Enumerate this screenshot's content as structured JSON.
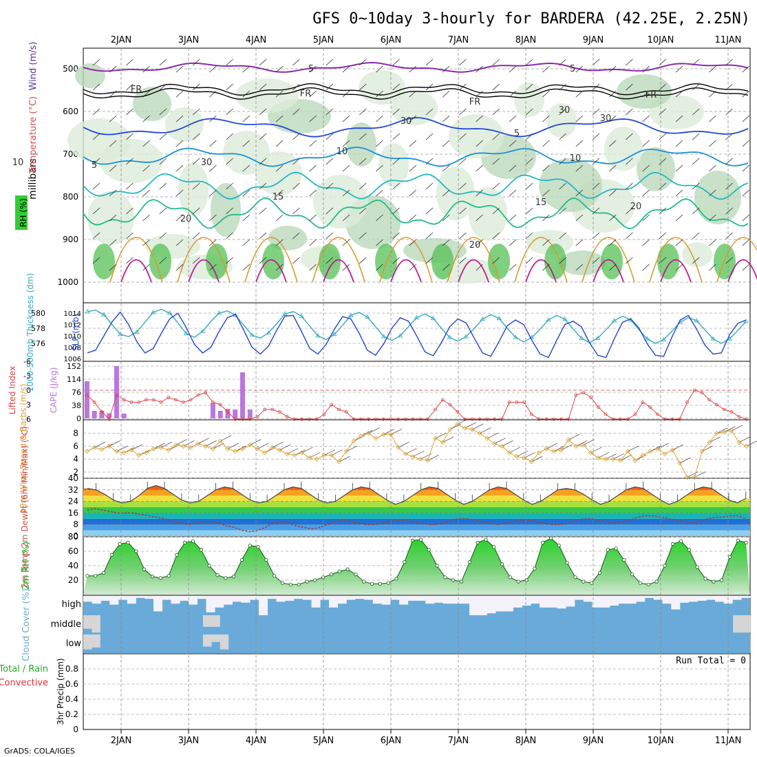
{
  "title": "GFS 0~10day 3-hourly for BARDERA (42.25E, 2.25N)",
  "credit": "GrADS: COLA/IGES",
  "dates": [
    "2JAN",
    "3JAN",
    "4JAN",
    "5JAN",
    "6JAN",
    "7JAN",
    "8JAN",
    "9JAN",
    "10JAN",
    "11JAN"
  ],
  "colors": {
    "rh": "#33bb33",
    "temp": "#d05050",
    "wind": "#6030a0",
    "cape": "#bb77dd",
    "li": "#dd4444",
    "thick": "#33aabb",
    "slp": "#2244cc",
    "wind10": "#e0a030",
    "rh2m": "#22aa22",
    "cloud": "#6aaad8",
    "precip_total": "#22aa22",
    "precip_conv": "#dd3333"
  },
  "chart_data": [
    {
      "type": "area",
      "panel": "upper-air",
      "ylabel": "millibars",
      "legend_labels": [
        "RH (%)",
        "Temperature (°C)",
        "Wind (m/s)"
      ],
      "y_ticks": [
        "500",
        "600",
        "700",
        "800",
        "900",
        "1000"
      ],
      "contour_labels": [
        "5",
        "5",
        "FR",
        "FR",
        "FR",
        "FR",
        "5",
        "5",
        "10",
        "10",
        "10",
        "15",
        "15",
        "20",
        "20",
        "20",
        "30",
        "30",
        "30",
        "30"
      ]
    },
    {
      "type": "line",
      "panel": "thickness-slp",
      "ylabel_left": "1000-500mb Thickness (dm)",
      "ylabel_right": "SLP (mb)",
      "left_ticks": [
        "580",
        "578",
        "576"
      ],
      "right_ticks": [
        "1014",
        "1012",
        "1010",
        "1008",
        "1006"
      ],
      "series": [
        {
          "name": "1000-500mb Thickness (dm)",
          "values": [
            580.2,
            580.4,
            579.8,
            578.5,
            577.2,
            576.9,
            577.5,
            578.8,
            580.1,
            580.5,
            580.0,
            578.7,
            577.3,
            576.8,
            577.6,
            578.9,
            580.0,
            580.3,
            579.7,
            578.4,
            577.1,
            576.7,
            577.4,
            578.6,
            579.9,
            580.2,
            579.6,
            578.3,
            577.0,
            576.5,
            577.2,
            578.4,
            579.7,
            580.1,
            579.5,
            578.2,
            576.9,
            576.4,
            577.0,
            578.2,
            579.4,
            579.9,
            579.3,
            578.0,
            576.8,
            576.3,
            576.9,
            578.0,
            579.2,
            579.8,
            579.3,
            578.0,
            576.8,
            576.2,
            576.8,
            577.9,
            579.1,
            579.7,
            579.2,
            577.9,
            576.7,
            576.1,
            576.7,
            577.8,
            579.0,
            579.6,
            579.1,
            577.8,
            576.6,
            576.0,
            576.5,
            577.6,
            578.8,
            579.4,
            579.0,
            577.8,
            576.6,
            576.0,
            576.6,
            577.7,
            578.9
          ]
        },
        {
          "name": "SLP (mb)",
          "values": [
            1007.0,
            1007.5,
            1010.0,
            1012.5,
            1014.2,
            1012.0,
            1009.0,
            1007.0,
            1007.8,
            1010.5,
            1013.0,
            1014.0,
            1011.5,
            1008.5,
            1007.0,
            1008.0,
            1010.8,
            1013.2,
            1013.8,
            1011.0,
            1008.0,
            1006.8,
            1008.2,
            1011.0,
            1013.5,
            1013.6,
            1010.8,
            1007.8,
            1006.8,
            1008.5,
            1011.2,
            1013.4,
            1013.0,
            1010.5,
            1007.5,
            1006.6,
            1008.6,
            1011.4,
            1013.2,
            1012.6,
            1010.0,
            1007.2,
            1006.5,
            1008.8,
            1011.6,
            1013.0,
            1012.3,
            1009.6,
            1007.0,
            1006.4,
            1009.0,
            1011.8,
            1012.8,
            1012.0,
            1009.2,
            1006.8,
            1006.2,
            1009.2,
            1012.0,
            1012.6,
            1011.6,
            1008.8,
            1006.6,
            1006.2,
            1009.5,
            1012.4,
            1013.0,
            1011.4,
            1008.6,
            1006.6,
            1006.4,
            1009.8,
            1012.8,
            1013.6,
            1011.2,
            1008.4,
            1006.8,
            1007.0,
            1010.2,
            1012.2,
            1012.8
          ]
        }
      ]
    },
    {
      "type": "bar",
      "panel": "cape-li",
      "ylabel_left": "Lifted Index",
      "ylabel_right": "CAPE (J/kg)",
      "left_ticks": [
        "-6",
        "-3",
        "0",
        "3",
        "6"
      ],
      "right_ticks": [
        "152",
        "114",
        "76",
        "38",
        "0"
      ],
      "series": [
        {
          "name": "CAPE (J/kg)",
          "values": [
            108,
            22,
            22,
            15,
            152,
            14,
            0,
            0,
            0,
            0,
            0,
            0,
            0,
            0,
            0,
            0,
            0,
            45,
            22,
            28,
            26,
            134,
            26,
            0,
            0,
            0,
            0,
            0,
            0,
            0,
            0,
            0,
            0,
            0,
            0,
            0,
            0,
            0,
            0,
            0,
            0,
            0,
            0,
            0,
            0,
            0,
            0,
            0,
            0,
            0,
            0,
            0,
            0,
            0,
            0,
            0,
            0,
            0,
            0,
            0,
            0,
            0,
            0,
            0,
            0,
            0,
            0,
            0,
            0,
            0,
            0,
            0,
            0,
            0,
            0,
            0,
            0,
            0,
            0,
            0,
            0,
            0,
            0,
            0,
            0,
            0,
            0,
            0,
            0,
            0
          ]
        },
        {
          "name": "Lifted Index",
          "values": [
            1.0,
            2.5,
            4.5,
            6.0,
            1.0,
            2.0,
            2.5,
            2.5,
            2.0,
            2.0,
            2.5,
            1.5,
            2.0,
            2.5,
            2.0,
            1.0,
            0.5,
            2.5,
            3.0,
            4.5,
            6.0,
            6.5,
            6.5,
            5.5,
            4.0,
            4.0,
            4.5,
            5.5,
            6.5,
            7.5,
            8.0,
            6.0,
            5.0,
            3.0,
            4.0,
            4.5,
            6.0,
            7.0,
            8.0,
            8.5,
            8.0,
            7.0,
            6.5,
            6.0,
            7.0,
            7.5,
            8.5,
            4.0,
            2.0,
            3.0,
            4.5,
            6.0,
            7.0,
            7.5,
            8.0,
            8.0,
            7.0,
            2.5,
            2.5,
            2.5,
            5.0,
            7.0,
            8.0,
            8.5,
            8.0,
            6.5,
            1.0,
            0.5,
            1.5,
            3.5,
            5.0,
            6.0,
            7.0,
            6.5,
            5.0,
            2.5,
            3.5,
            5.0,
            6.5,
            7.0,
            6.0,
            2.5,
            0.0,
            0.5,
            2.0,
            3.0,
            4.0,
            4.5,
            5.5,
            6.0
          ]
        }
      ]
    },
    {
      "type": "line",
      "panel": "wind10m",
      "ylabel": "10m Wind Speed & Barbs (m/s)",
      "y_ticks": [
        "8",
        "6",
        "4",
        "2"
      ],
      "series": [
        {
          "name": "10m Wind Speed",
          "values": [
            5.2,
            5.8,
            5.5,
            6.0,
            5.2,
            5.0,
            5.4,
            4.6,
            5.0,
            5.6,
            5.8,
            5.4,
            6.2,
            6.0,
            5.8,
            6.4,
            6.0,
            5.6,
            6.8,
            5.6,
            5.2,
            5.6,
            6.2,
            5.6,
            5.0,
            5.8,
            5.4,
            4.8,
            4.6,
            5.0,
            4.2,
            4.0,
            4.6,
            4.6,
            3.6,
            5.2,
            6.8,
            7.6,
            8.0,
            7.2,
            7.8,
            7.8,
            5.8,
            4.8,
            4.4,
            4.0,
            3.8,
            7.2,
            6.6,
            8.6,
            9.4,
            8.8,
            8.6,
            8.0,
            7.2,
            6.4,
            6.0,
            5.0,
            4.4,
            4.2,
            3.6,
            5.0,
            5.6,
            5.2,
            5.4,
            7.0,
            6.0,
            6.2,
            5.0,
            4.2,
            4.0,
            4.0,
            3.8,
            5.2,
            3.8,
            4.6,
            5.2,
            5.6,
            4.8,
            5.4,
            3.4,
            1.2,
            1.2,
            5.2,
            6.6,
            8.0,
            8.2,
            8.4,
            6.6,
            6.0
          ]
        }
      ]
    },
    {
      "type": "area",
      "panel": "temperature",
      "ylabel": "2m Temp 2m DewPt (6hr Min/Max) (°C)",
      "y_ticks": [
        "40",
        "32",
        "24",
        "16",
        "8",
        "0"
      ],
      "series": [
        {
          "name": "2m Temp",
          "values": [
            33,
            32,
            29,
            25,
            23,
            24,
            28,
            33,
            35,
            33,
            29,
            25,
            23,
            24,
            28,
            32,
            34,
            33,
            29,
            25,
            23,
            24,
            28,
            32,
            34,
            33,
            29,
            25,
            23,
            24,
            28,
            32,
            34,
            33,
            29,
            25,
            22,
            24,
            28,
            32,
            34,
            33,
            29,
            25,
            22,
            24,
            28,
            32,
            34,
            33,
            29,
            25,
            22,
            24,
            28,
            32,
            33,
            32,
            29,
            25,
            22,
            24,
            28,
            32,
            34,
            33,
            29,
            25,
            22,
            24,
            28,
            32,
            34,
            33,
            29,
            25,
            23,
            26
          ]
        },
        {
          "name": "2m DewPt",
          "values": [
            18,
            19,
            18,
            17,
            16,
            16,
            16,
            15,
            14,
            13,
            12,
            10,
            9,
            8,
            9,
            10,
            10,
            9,
            7,
            6,
            4,
            3,
            4,
            6,
            9,
            10,
            9,
            7,
            6,
            5,
            6,
            8,
            10,
            11,
            10,
            9,
            8,
            8,
            9,
            10,
            11,
            11,
            10,
            9,
            8,
            8,
            9,
            11,
            12,
            12,
            11,
            10,
            9,
            8,
            9,
            10,
            11,
            11,
            10,
            9,
            8,
            8,
            9,
            11,
            12,
            12,
            11,
            10,
            9,
            10,
            11,
            13,
            14,
            14,
            13,
            12,
            11,
            10,
            9,
            10,
            12,
            13,
            13,
            14,
            14,
            12
          ]
        }
      ]
    },
    {
      "type": "area",
      "panel": "rh2m",
      "ylabel": "2m RH (%)",
      "y_ticks": [
        "80",
        "60",
        "40",
        "20"
      ],
      "series": [
        {
          "name": "2m RH",
          "values": [
            26,
            26,
            30,
            55,
            70,
            72,
            60,
            35,
            25,
            23,
            26,
            55,
            72,
            74,
            62,
            40,
            27,
            23,
            25,
            48,
            68,
            66,
            48,
            26,
            16,
            14,
            14,
            18,
            20,
            24,
            28,
            32,
            35,
            28,
            18,
            15,
            15,
            16,
            22,
            45,
            75,
            76,
            62,
            40,
            24,
            20,
            18,
            45,
            72,
            76,
            66,
            42,
            24,
            18,
            20,
            36,
            72,
            78,
            68,
            44,
            24,
            18,
            16,
            30,
            62,
            64,
            48,
            28,
            16,
            14,
            18,
            40,
            70,
            74,
            62,
            38,
            22,
            18,
            20,
            52,
            75,
            72
          ]
        }
      ]
    },
    {
      "type": "bar",
      "panel": "cloud",
      "ylabel": "Cloud Cover (%)",
      "y_ticks": [
        "high",
        "middle",
        "low"
      ],
      "series": [
        {
          "name": "high",
          "values": [
            70,
            60,
            75,
            55,
            80,
            60,
            90,
            85,
            20,
            80,
            60,
            75,
            55,
            85,
            15,
            40,
            55,
            70,
            65,
            80,
            0,
            85,
            70,
            75,
            85,
            80,
            40,
            80,
            40,
            60,
            80,
            85,
            80,
            60,
            55,
            80,
            55,
            75,
            75,
            60,
            65,
            60,
            60,
            60,
            0,
            0,
            10,
            20,
            20,
            40,
            50,
            60,
            40,
            40,
            35,
            45,
            80,
            70,
            40,
            40,
            50,
            60,
            60,
            70,
            90,
            80,
            60,
            30,
            65,
            70,
            75,
            80,
            70,
            60,
            80,
            90
          ]
        },
        {
          "name": "middle",
          "values": [
            30,
            10,
            0,
            0,
            0,
            0,
            0,
            0,
            0,
            0,
            0,
            0,
            0,
            0,
            40,
            40,
            0,
            0,
            0,
            0,
            0,
            0,
            0,
            0,
            0,
            0,
            0,
            0,
            0,
            0,
            0,
            0,
            0,
            0,
            0,
            0,
            0,
            0,
            0,
            0,
            0,
            0,
            0,
            0,
            0,
            0,
            0,
            0,
            0,
            0,
            0,
            0,
            0,
            0,
            0,
            0,
            0,
            0,
            0,
            0,
            0,
            0,
            0,
            0,
            0,
            0,
            0,
            0,
            0,
            0,
            0,
            0,
            0,
            0,
            0,
            0,
            10,
            10
          ]
        },
        {
          "name": "low",
          "values": [
            20,
            30,
            0,
            0,
            0,
            0,
            0,
            0,
            0,
            0,
            0,
            0,
            0,
            0,
            35,
            60,
            20,
            0,
            0,
            0,
            0,
            0,
            0,
            0,
            0,
            0,
            0,
            0,
            0,
            0,
            0,
            0,
            0,
            0,
            0,
            0,
            0,
            0,
            0,
            0,
            0,
            0,
            0,
            0,
            0,
            0,
            0,
            0,
            0,
            0,
            0,
            0,
            0,
            0,
            0,
            0,
            0,
            0,
            0,
            0,
            0,
            0,
            0,
            0,
            0,
            0,
            0,
            0,
            0,
            0,
            0,
            0,
            0,
            0,
            0,
            0,
            0,
            0
          ]
        }
      ]
    },
    {
      "type": "bar",
      "panel": "precip",
      "ylabel": "3hr Precip (mm)",
      "legend_labels": [
        "Total / Rain",
        "Convective"
      ],
      "y_ticks": [
        "0.8",
        "0.6",
        "0.4",
        "0.2",
        "0"
      ],
      "run_total": "Run Total = 0",
      "series": [
        {
          "name": "3hr Precip",
          "values": []
        }
      ]
    }
  ]
}
